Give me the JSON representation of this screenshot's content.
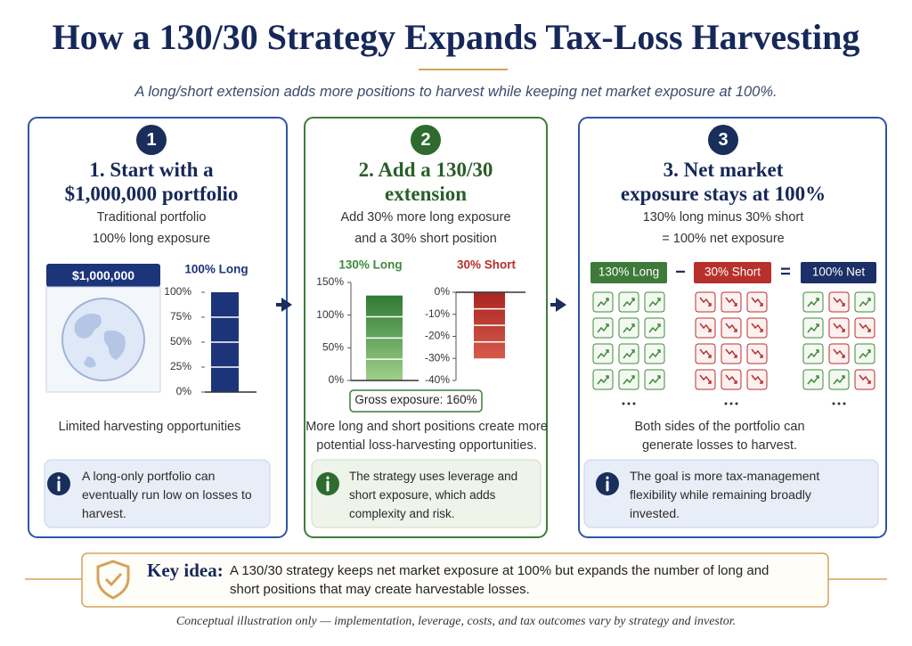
{
  "header": {
    "title": "How a 130/30 Strategy Expands Tax-Loss Harvesting",
    "subtitle": "A long/short extension adds more positions to harvest while keeping net market exposure at 100%."
  },
  "panels": [
    {
      "number": "1",
      "title": [
        "1. Start with a",
        "$1,000,000 portfolio"
      ],
      "description": [
        "Traditional portfolio",
        "100% long exposure"
      ],
      "badge": "$1,000,000",
      "charts": [
        {
          "type": "bar",
          "label": "100% Long",
          "color": "#1c347a",
          "value": 100,
          "ylim": [
            0,
            100
          ],
          "yticks": [
            {
              "value": 0,
              "label": "0%"
            },
            {
              "value": 25,
              "label": "25%"
            },
            {
              "value": 50,
              "label": "50%"
            },
            {
              "value": 75,
              "label": "75%"
            },
            {
              "value": 100,
              "label": "100%"
            }
          ]
        }
      ],
      "caption": [
        "Limited harvesting opportunities"
      ],
      "note": "A long-only portfolio can eventually run low on losses to harvest."
    },
    {
      "number": "2",
      "title": [
        "2. Add a 130/30",
        "extension"
      ],
      "description": [
        "Add 30% more long exposure",
        "and a 30% short position"
      ],
      "charts": [
        {
          "type": "bar",
          "label": "130% Long",
          "color": "#3f8a3c",
          "value": 130,
          "ylim": [
            0,
            150
          ],
          "yticks": [
            {
              "value": 0,
              "label": "0%"
            },
            {
              "value": 50,
              "label": "50%"
            },
            {
              "value": 100,
              "label": "100%"
            },
            {
              "value": 150,
              "label": "150%"
            }
          ]
        },
        {
          "type": "bar",
          "label": "30% Short",
          "color": "#b8302b",
          "value": -30,
          "ylim": [
            -40,
            0
          ],
          "yticks": [
            {
              "value": 0,
              "label": "0%"
            },
            {
              "value": -10,
              "label": "-10%"
            },
            {
              "value": -20,
              "label": "-20%"
            },
            {
              "value": -30,
              "label": "-30%"
            },
            {
              "value": -40,
              "label": "-40%"
            }
          ]
        }
      ],
      "gross_exposure": "Gross exposure: 160%",
      "caption": [
        "More long and short positions create more",
        "potential loss-harvesting opportunities."
      ],
      "note": "The strategy uses leverage and short exposure, which adds complexity and risk."
    },
    {
      "number": "3",
      "title": [
        "3. Net market",
        "exposure stays at 100%"
      ],
      "description": [
        "130% long minus 30% short",
        "= 100% net exposure"
      ],
      "boxes": [
        {
          "label": "130% Long",
          "color": "#3f7a3a"
        },
        {
          "label": "30% Short",
          "color": "#b8302b"
        },
        {
          "label": "100% Net",
          "color": "#1c2f66"
        }
      ],
      "operators": [
        "−",
        "="
      ],
      "caption": [
        "Both sides of the portfolio can",
        "generate losses to harvest."
      ],
      "note": "The goal is more tax-management flexibility while remaining broadly invested."
    }
  ],
  "key_idea": {
    "label": "Key idea:",
    "text": "A 130/30 strategy keeps net market exposure at 100% but expands the number of long and short positions that may create harvestable losses."
  },
  "footer": "Conceptual illustration only — implementation, leverage, costs, and tax outcomes vary by strategy and investor."
}
